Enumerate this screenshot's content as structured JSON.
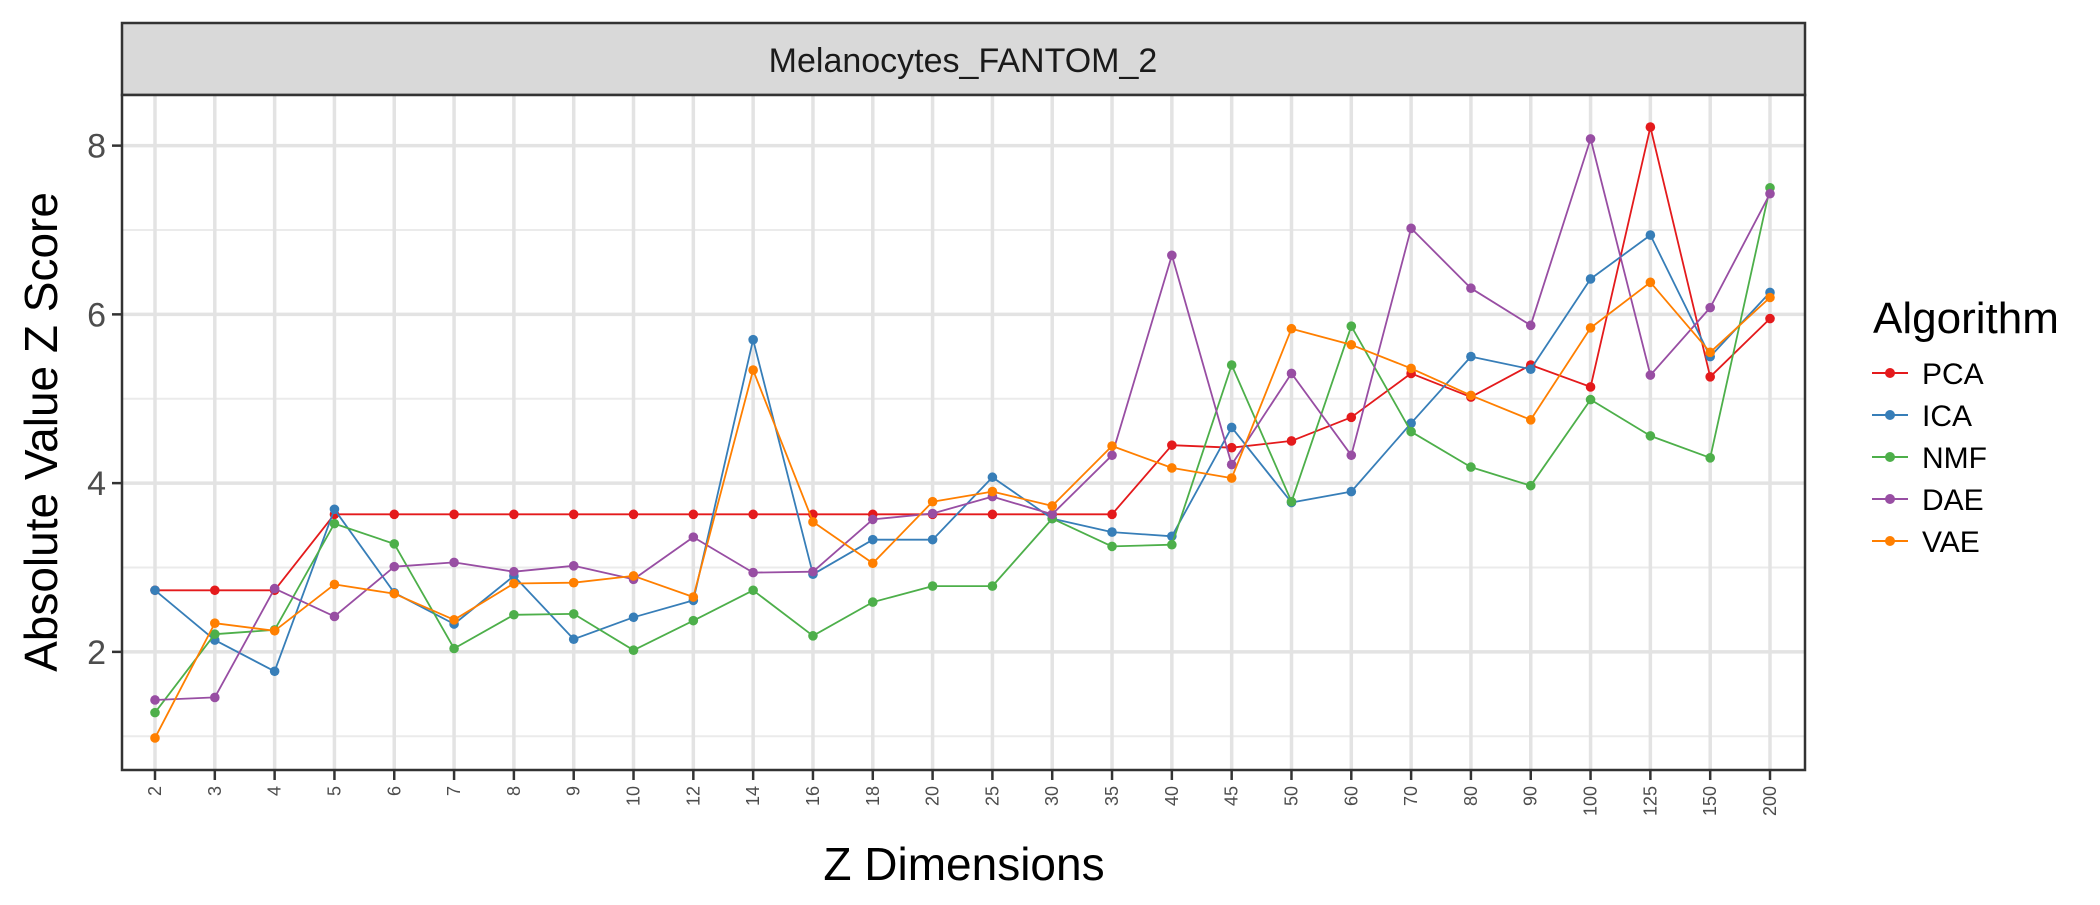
{
  "chart_data": {
    "type": "line",
    "facet_title": "Melanocytes_FANTOM_2",
    "xlabel": "Z Dimensions",
    "ylabel": "Absolute Value Z Score",
    "x_is_categorical": true,
    "categories": [
      "2",
      "3",
      "4",
      "5",
      "6",
      "7",
      "8",
      "9",
      "10",
      "12",
      "14",
      "16",
      "18",
      "20",
      "25",
      "30",
      "35",
      "40",
      "45",
      "50",
      "60",
      "70",
      "80",
      "90",
      "100",
      "125",
      "150",
      "200"
    ],
    "ylim": [
      0.6,
      8.6
    ],
    "yticks": [
      2,
      4,
      6,
      8
    ],
    "ytick_labels": [
      "2",
      "4",
      "6",
      "8"
    ],
    "grid": true,
    "legend": {
      "title": "Algorithm",
      "placement": "right"
    },
    "series": [
      {
        "name": "PCA",
        "color": "#E41A1C",
        "values": [
          2.73,
          2.73,
          2.73,
          3.63,
          3.63,
          3.63,
          3.63,
          3.63,
          3.63,
          3.63,
          3.63,
          3.63,
          3.63,
          3.63,
          3.63,
          3.63,
          3.63,
          4.45,
          4.42,
          4.5,
          4.78,
          5.3,
          5.02,
          5.4,
          5.14,
          8.22,
          5.26,
          5.95
        ]
      },
      {
        "name": "ICA",
        "color": "#377EB8",
        "values": [
          2.73,
          2.14,
          1.77,
          3.69,
          2.7,
          2.33,
          2.9,
          2.15,
          2.41,
          2.61,
          5.7,
          2.92,
          3.33,
          3.33,
          4.07,
          3.58,
          3.42,
          3.37,
          4.66,
          3.77,
          3.9,
          4.71,
          5.5,
          5.35,
          6.42,
          6.94,
          5.5,
          6.26
        ]
      },
      {
        "name": "NMF",
        "color": "#4DAF4A",
        "values": [
          1.28,
          2.21,
          2.26,
          3.52,
          3.28,
          2.04,
          2.44,
          2.45,
          2.02,
          2.37,
          2.73,
          2.19,
          2.59,
          2.78,
          2.78,
          3.58,
          3.25,
          3.27,
          5.4,
          3.78,
          5.86,
          4.61,
          4.19,
          3.97,
          4.99,
          4.56,
          4.3,
          7.5
        ]
      },
      {
        "name": "DAE",
        "color": "#984EA3",
        "values": [
          1.43,
          1.46,
          2.75,
          2.42,
          3.01,
          3.06,
          2.95,
          3.02,
          2.86,
          3.36,
          2.94,
          2.95,
          3.57,
          3.64,
          3.84,
          3.63,
          4.33,
          6.7,
          4.22,
          5.3,
          4.33,
          7.02,
          6.31,
          5.87,
          8.08,
          5.28,
          6.08,
          7.43
        ]
      },
      {
        "name": "VAE",
        "color": "#FF7F00",
        "values": [
          0.98,
          2.34,
          2.25,
          2.8,
          2.69,
          2.38,
          2.81,
          2.82,
          2.9,
          2.65,
          5.34,
          3.54,
          3.05,
          3.78,
          3.9,
          3.73,
          4.44,
          4.18,
          4.06,
          5.83,
          5.64,
          5.36,
          5.04,
          4.75,
          5.84,
          6.38,
          5.55,
          6.2
        ]
      }
    ]
  }
}
